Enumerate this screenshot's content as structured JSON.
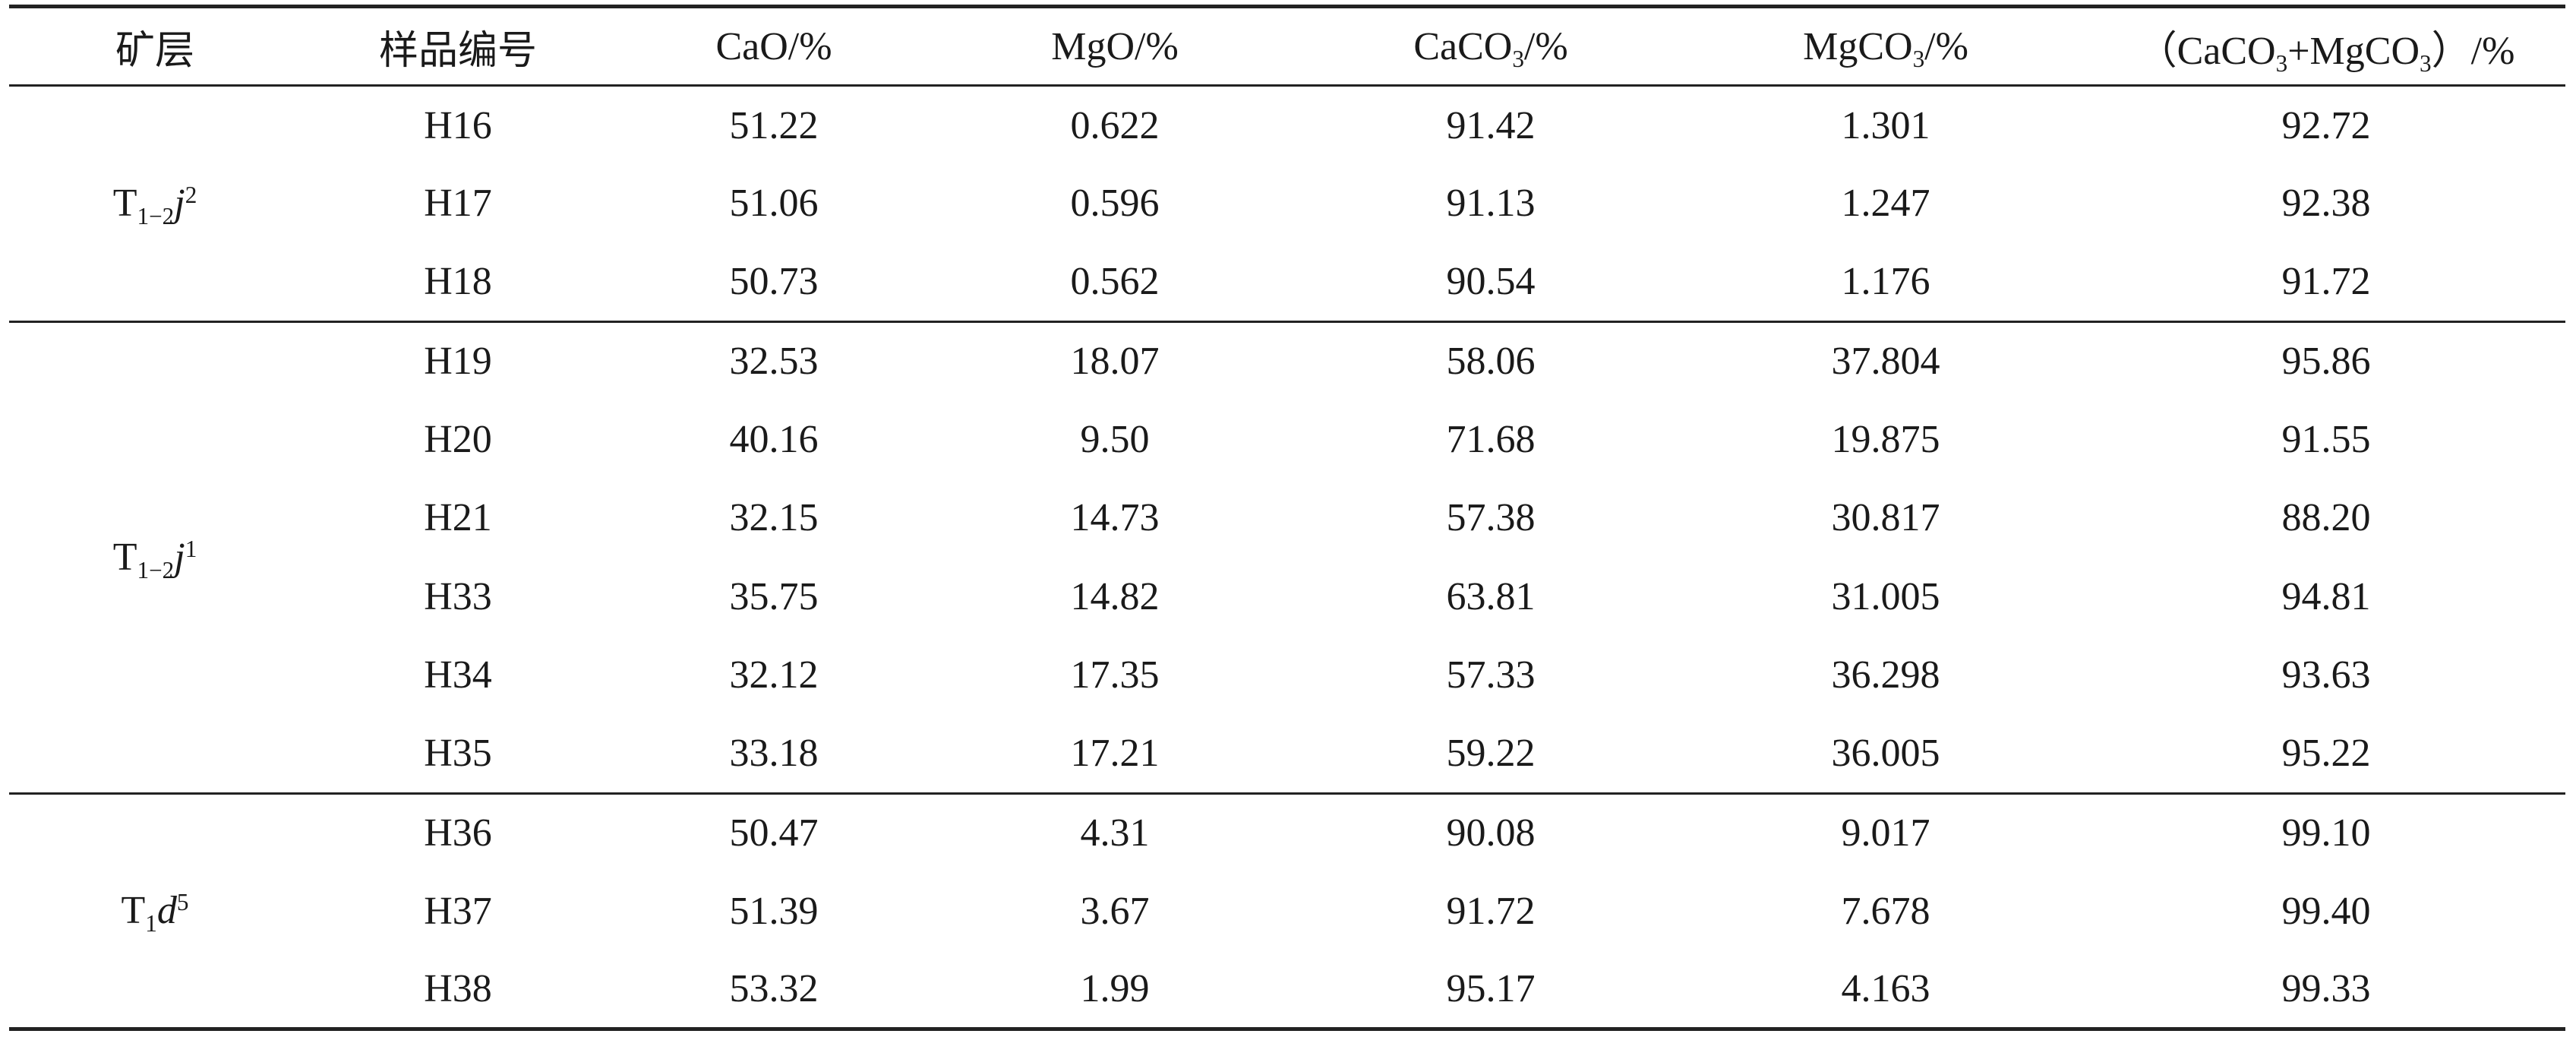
{
  "table": {
    "headers": {
      "layer": "矿层",
      "sample": "样品编号",
      "cao": "CaO/%",
      "mgo": "MgO/%",
      "caco3": {
        "pre": "CaCO",
        "sub": "3",
        "post": "/%"
      },
      "mgco3": {
        "pre": "MgCO",
        "sub": "3",
        "post": "/%"
      },
      "total": {
        "p1": "（CaCO",
        "s1": "3",
        "p2": "+MgCO",
        "s2": "3",
        "p3": "）/%"
      }
    },
    "groups": [
      {
        "layer": {
          "base": "T",
          "sub": "1−2",
          "ital": "j",
          "sup": "2"
        },
        "rows": [
          {
            "sample": "H16",
            "cao": "51.22",
            "mgo": "0.622",
            "caco3": "91.42",
            "mgco3": "1.301",
            "total": "92.72"
          },
          {
            "sample": "H17",
            "cao": "51.06",
            "mgo": "0.596",
            "caco3": "91.13",
            "mgco3": "1.247",
            "total": "92.38"
          },
          {
            "sample": "H18",
            "cao": "50.73",
            "mgo": "0.562",
            "caco3": "90.54",
            "mgco3": "1.176",
            "total": "91.72"
          }
        ]
      },
      {
        "layer": {
          "base": "T",
          "sub": "1−2",
          "ital": "j",
          "sup": "1"
        },
        "rows": [
          {
            "sample": "H19",
            "cao": "32.53",
            "mgo": "18.07",
            "caco3": "58.06",
            "mgco3": "37.804",
            "total": "95.86"
          },
          {
            "sample": "H20",
            "cao": "40.16",
            "mgo": "9.50",
            "caco3": "71.68",
            "mgco3": "19.875",
            "total": "91.55"
          },
          {
            "sample": "H21",
            "cao": "32.15",
            "mgo": "14.73",
            "caco3": "57.38",
            "mgco3": "30.817",
            "total": "88.20"
          },
          {
            "sample": "H33",
            "cao": "35.75",
            "mgo": "14.82",
            "caco3": "63.81",
            "mgco3": "31.005",
            "total": "94.81"
          },
          {
            "sample": "H34",
            "cao": "32.12",
            "mgo": "17.35",
            "caco3": "57.33",
            "mgco3": "36.298",
            "total": "93.63"
          },
          {
            "sample": "H35",
            "cao": "33.18",
            "mgo": "17.21",
            "caco3": "59.22",
            "mgco3": "36.005",
            "total": "95.22"
          }
        ]
      },
      {
        "layer": {
          "base": "T",
          "sub": "1",
          "ital": "d",
          "sup": "5"
        },
        "rows": [
          {
            "sample": "H36",
            "cao": "50.47",
            "mgo": "4.31",
            "caco3": "90.08",
            "mgco3": "9.017",
            "total": "99.10"
          },
          {
            "sample": "H37",
            "cao": "51.39",
            "mgo": "3.67",
            "caco3": "91.72",
            "mgco3": "7.678",
            "total": "99.40"
          },
          {
            "sample": "H38",
            "cao": "53.32",
            "mgo": "1.99",
            "caco3": "95.17",
            "mgco3": "4.163",
            "total": "99.33"
          }
        ]
      }
    ]
  }
}
